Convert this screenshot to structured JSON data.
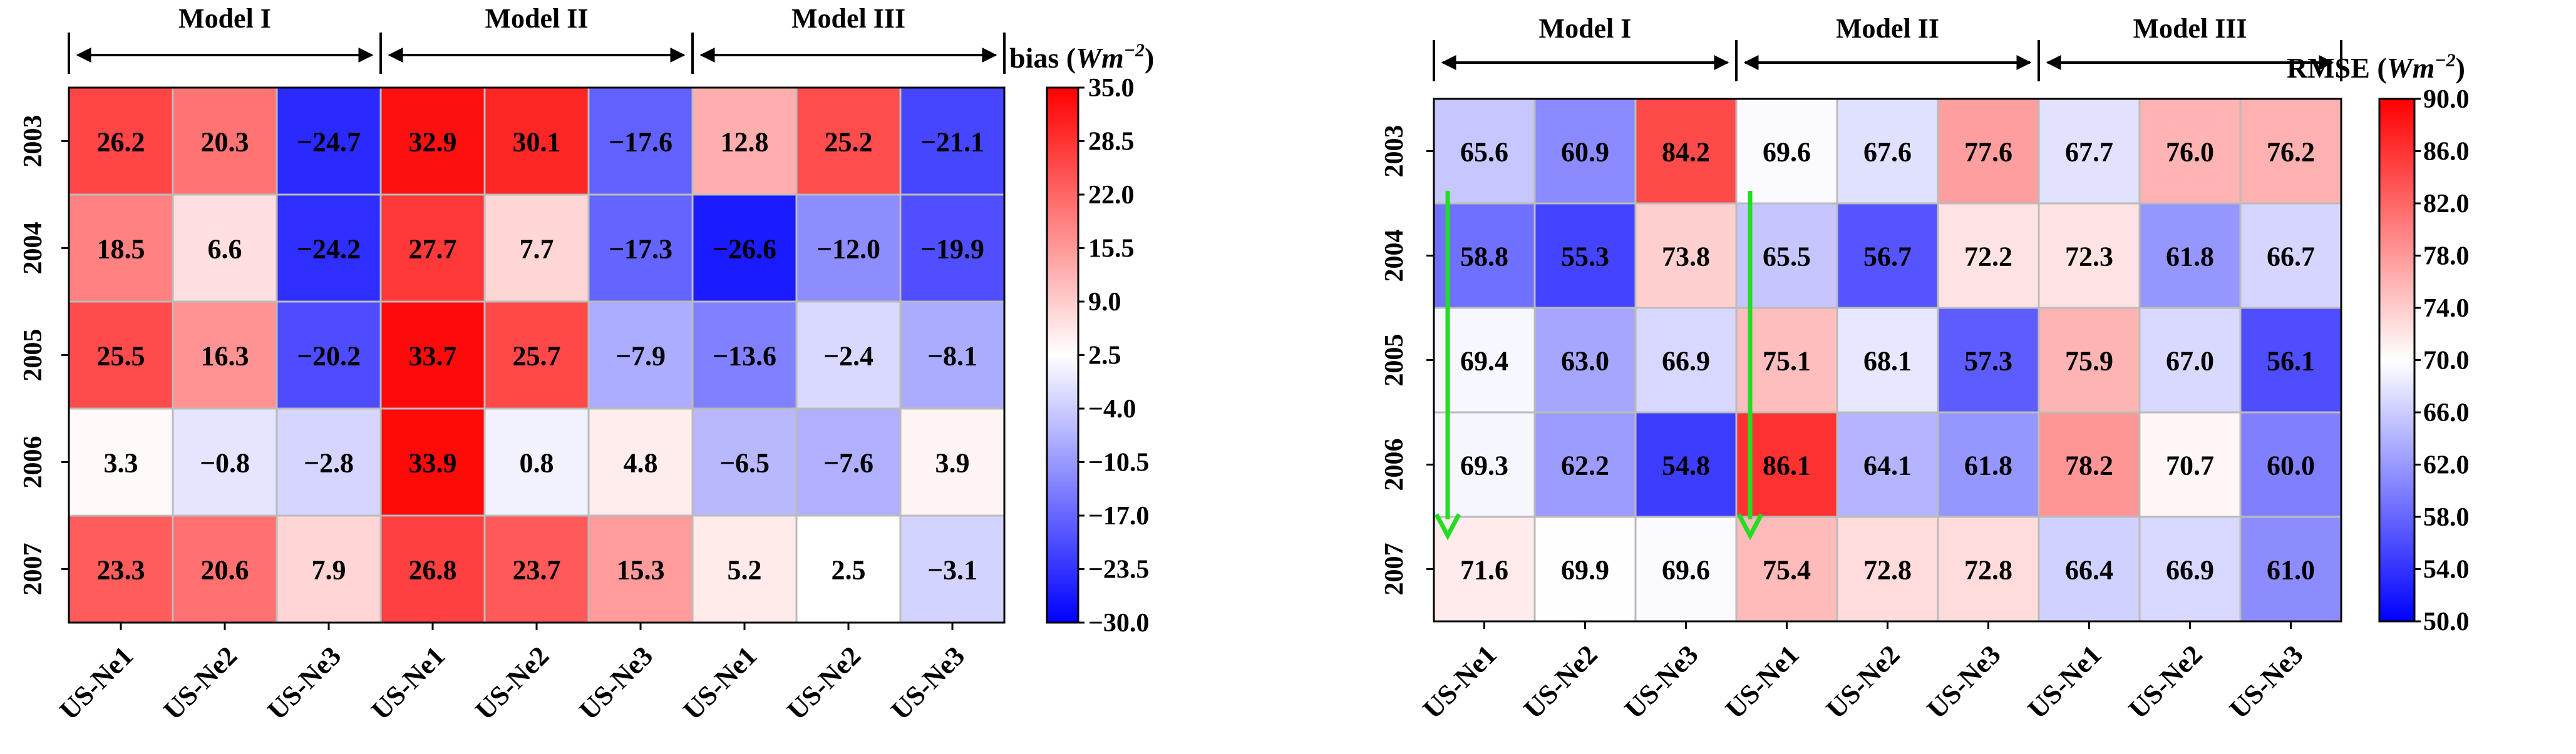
{
  "chart_data": [
    {
      "type": "heatmap",
      "metric": "bias",
      "colorbar_label": "bias",
      "colorbar_unit": "Wm",
      "colorbar_unit_exp": "−2",
      "vmin": -30.0,
      "vmax": 35.0,
      "colorbar_ticks": [
        "35.0",
        "28.5",
        "22.0",
        "15.5",
        "9.0",
        "2.5",
        "−4.0",
        "−10.5",
        "−17.0",
        "−23.5",
        "−30.0"
      ],
      "models": [
        "Model I",
        "Model II",
        "Model III"
      ],
      "rows": [
        "2003",
        "2004",
        "2005",
        "2006",
        "2007"
      ],
      "columns": [
        "US-Ne1",
        "US-Ne2",
        "US-Ne3",
        "US-Ne1",
        "US-Ne2",
        "US-Ne3",
        "US-Ne1",
        "US-Ne2",
        "US-Ne3"
      ],
      "values": [
        [
          26.2,
          20.3,
          -24.7,
          32.9,
          30.1,
          -17.6,
          12.8,
          25.2,
          -21.1
        ],
        [
          18.5,
          6.6,
          -24.2,
          27.7,
          7.7,
          -17.3,
          -26.6,
          -12.0,
          -19.9
        ],
        [
          25.5,
          16.3,
          -20.2,
          33.7,
          25.7,
          -7.9,
          -13.6,
          -2.4,
          -8.1
        ],
        [
          3.3,
          -0.8,
          -2.8,
          33.9,
          0.8,
          4.8,
          -6.5,
          -7.6,
          3.9
        ],
        [
          23.3,
          20.6,
          7.9,
          26.8,
          23.7,
          15.3,
          5.2,
          2.5,
          -3.1
        ]
      ],
      "arrows": []
    },
    {
      "type": "heatmap",
      "metric": "RMSE",
      "colorbar_label": "RMSE",
      "colorbar_unit": "Wm",
      "colorbar_unit_exp": "−2",
      "vmin": 50.0,
      "vmax": 90.0,
      "colorbar_ticks": [
        "90.0",
        "86.0",
        "82.0",
        "78.0",
        "74.0",
        "70.0",
        "66.0",
        "62.0",
        "58.0",
        "54.0",
        "50.0"
      ],
      "models": [
        "Model I",
        "Model II",
        "Model III"
      ],
      "rows": [
        "2003",
        "2004",
        "2005",
        "2006",
        "2007"
      ],
      "columns": [
        "US-Ne1",
        "US-Ne2",
        "US-Ne3",
        "US-Ne1",
        "US-Ne2",
        "US-Ne3",
        "US-Ne1",
        "US-Ne2",
        "US-Ne3"
      ],
      "values": [
        [
          65.6,
          60.9,
          84.2,
          69.6,
          67.6,
          77.6,
          67.7,
          76.0,
          76.2
        ],
        [
          58.8,
          55.3,
          73.8,
          65.5,
          56.7,
          72.2,
          72.3,
          61.8,
          66.7
        ],
        [
          69.4,
          63.0,
          66.9,
          75.1,
          68.1,
          57.3,
          75.9,
          67.0,
          56.1
        ],
        [
          69.3,
          62.2,
          54.8,
          86.1,
          64.1,
          61.8,
          78.2,
          70.7,
          60.0
        ],
        [
          71.6,
          69.9,
          69.6,
          75.4,
          72.8,
          72.8,
          66.4,
          66.9,
          61.0
        ]
      ],
      "arrows": [
        {
          "column": 0,
          "from_row": 1,
          "to_row": 4,
          "color": "#22dd22"
        },
        {
          "column": 3,
          "from_row": 1,
          "to_row": 4,
          "color": "#22dd22"
        }
      ]
    }
  ],
  "colors": {
    "low": "#0000ff",
    "mid": "#ffffff",
    "high": "#ff0000",
    "grid": "#bbbbbb",
    "arrow": "#22dd22"
  }
}
